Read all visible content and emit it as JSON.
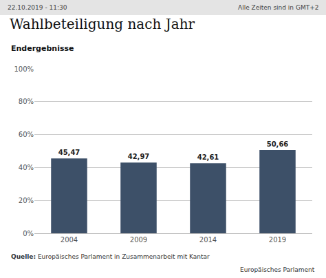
{
  "chart_data": {
    "type": "bar",
    "title": "Wahlbeteiligung nach Jahr",
    "subtitle": "Endergebnisse",
    "categories": [
      "2004",
      "2009",
      "2014",
      "2019"
    ],
    "values": [
      45.47,
      42.97,
      42.61,
      50.66
    ],
    "value_labels": [
      "45,47",
      "42,97",
      "42,61",
      "50,66"
    ],
    "data_labels": true,
    "color": "#3d5068",
    "ylim": [
      0,
      100
    ],
    "yticks": [
      {
        "value": 0,
        "label": "0%"
      },
      {
        "value": 20,
        "label": "20%"
      },
      {
        "value": 40,
        "label": "40%"
      },
      {
        "value": 60,
        "label": "60%"
      },
      {
        "value": 80,
        "label": "80%"
      },
      {
        "value": 100,
        "label": "100%"
      }
    ],
    "grid": true,
    "annotations": [
      "22.10.2019 - 11:30",
      "Alle Zeiten sind in GMT+2",
      "Quelle:",
      "Europäisches Parlament in Zusammenarbeit mit Kantar",
      "Europäisches Parlament"
    ]
  }
}
